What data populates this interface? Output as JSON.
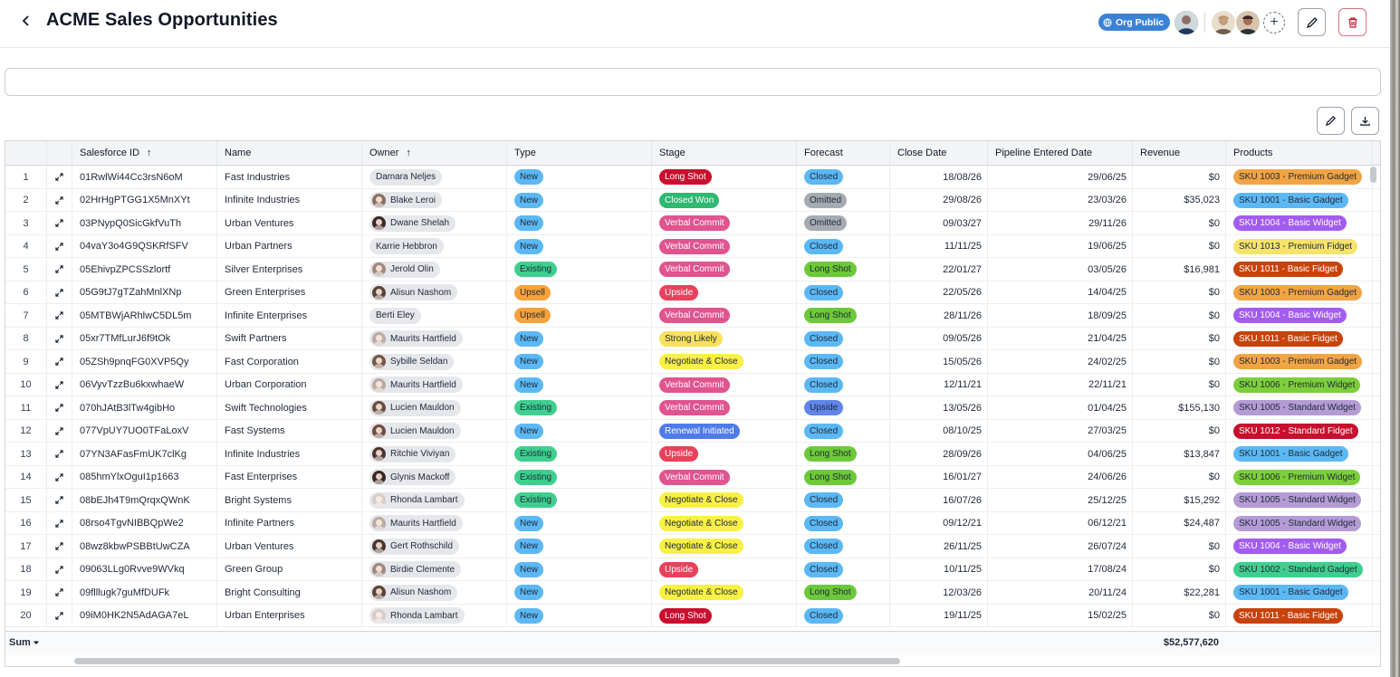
{
  "header": {
    "title": "ACME Sales Opportunities",
    "org_badge": "Org Public"
  },
  "grid": {
    "columns": [
      {
        "label": "Salesforce ID",
        "sorted": true
      },
      {
        "label": "Name",
        "sorted": false
      },
      {
        "label": "Owner",
        "sorted": true
      },
      {
        "label": "Type",
        "sorted": false
      },
      {
        "label": "Stage",
        "sorted": false
      },
      {
        "label": "Forecast",
        "sorted": false
      },
      {
        "label": "Close Date",
        "sorted": false
      },
      {
        "label": "Pipeline Entered Date",
        "sorted": false
      },
      {
        "label": "Revenue",
        "sorted": false
      },
      {
        "label": "Products",
        "sorted": false
      }
    ],
    "sort_arrow": "↑",
    "sum_label": "Sum",
    "sum_revenue": "$52,577,620",
    "rows": [
      {
        "n": "1",
        "id": "01RwlWi44Cc3rsN6oM",
        "name": "Fast Industries",
        "owner": "Damara Neljes",
        "av": "",
        "type": "New",
        "stage": "Long Shot",
        "forecast": "Closed",
        "close": "18/08/26",
        "pipe": "29/06/25",
        "rev": "$0",
        "prod": "SKU 1003 - Premium Gadget"
      },
      {
        "n": "2",
        "id": "02HrHgPTGG1X5MnXYt",
        "name": "Infinite Industries",
        "owner": "Blake Leroi",
        "av": "#8d6e63",
        "type": "New",
        "stage": "Closed Won",
        "forecast": "Omitted",
        "close": "29/08/26",
        "pipe": "23/03/26",
        "rev": "$35,023",
        "prod": "SKU 1001 - Basic Gadget"
      },
      {
        "n": "3",
        "id": "03PNypQ0SicGkfVuTh",
        "name": "Urban Ventures",
        "owner": "Dwane Shelah",
        "av": "#3e2723",
        "type": "New",
        "stage": "Verbal Commit",
        "forecast": "Omitted",
        "close": "09/03/27",
        "pipe": "29/11/26",
        "rev": "$0",
        "prod": "SKU 1004 - Basic Widget"
      },
      {
        "n": "4",
        "id": "04vaY3o4G9QSKRfSFV",
        "name": "Urban Partners",
        "owner": "Karrie Hebbron",
        "av": "",
        "type": "New",
        "stage": "Verbal Commit",
        "forecast": "Closed",
        "close": "11/11/25",
        "pipe": "19/06/25",
        "rev": "$0",
        "prod": "SKU 1013 - Premium Fidget"
      },
      {
        "n": "5",
        "id": "05EhivpZPCSSzlortf",
        "name": "Silver Enterprises",
        "owner": "Jerold Olin",
        "av": "#a1887f",
        "type": "Existing",
        "stage": "Verbal Commit",
        "forecast": "Long Shot",
        "close": "22/01/27",
        "pipe": "03/05/26",
        "rev": "$16,981",
        "prod": "SKU 1011 - Basic Fidget"
      },
      {
        "n": "6",
        "id": "05G9tJ7gTZahMnlXNp",
        "name": "Green Enterprises",
        "owner": "Alisun Nashom",
        "av": "#5d4037",
        "type": "Upsell",
        "stage": "Upside",
        "forecast": "Closed",
        "close": "22/05/26",
        "pipe": "14/04/25",
        "rev": "$0",
        "prod": "SKU 1003 - Premium Gadget"
      },
      {
        "n": "7",
        "id": "05MTBWjARhlwC5DL5m",
        "name": "Infinite Enterprises",
        "owner": "Berti Eley",
        "av": "",
        "type": "Upsell",
        "stage": "Verbal Commit",
        "forecast": "Long Shot",
        "close": "28/11/26",
        "pipe": "18/09/25",
        "rev": "$0",
        "prod": "SKU 1004 - Basic Widget"
      },
      {
        "n": "8",
        "id": "05xr7TMfLurJ6f9tOk",
        "name": "Swift Partners",
        "owner": "Maurits Hartfield",
        "av": "#bcaaa4",
        "type": "New",
        "stage": "Strong Likely",
        "forecast": "Closed",
        "close": "09/05/26",
        "pipe": "21/04/25",
        "rev": "$0",
        "prod": "SKU 1011 - Basic Fidget"
      },
      {
        "n": "9",
        "id": "05ZSh9pnqFG0XVP5Qy",
        "name": "Fast Corporation",
        "owner": "Sybille Seldan",
        "av": "#795548",
        "type": "New",
        "stage": "Negotiate & Close",
        "forecast": "Closed",
        "close": "15/05/26",
        "pipe": "24/02/25",
        "rev": "$0",
        "prod": "SKU 1003 - Premium Gadget"
      },
      {
        "n": "10",
        "id": "06VyvTzzBu6kxwhaeW",
        "name": "Urban Corporation",
        "owner": "Maurits Hartfield",
        "av": "#bcaaa4",
        "type": "New",
        "stage": "Verbal Commit",
        "forecast": "Closed",
        "close": "12/11/21",
        "pipe": "22/11/21",
        "rev": "$0",
        "prod": "SKU 1006 - Premium Widget"
      },
      {
        "n": "11",
        "id": "070hJAtB3lTw4gibHo",
        "name": "Swift Technologies",
        "owner": "Lucien Mauldon",
        "av": "#6d4c41",
        "type": "Existing",
        "stage": "Verbal Commit",
        "forecast": "Upside",
        "close": "13/05/26",
        "pipe": "01/04/25",
        "rev": "$155,130",
        "prod": "SKU 1005 - Standard Widget"
      },
      {
        "n": "12",
        "id": "077VpUY7UO0TFaLoxV",
        "name": "Fast Systems",
        "owner": "Lucien Mauldon",
        "av": "#6d4c41",
        "type": "New",
        "stage": "Renewal Initiated",
        "forecast": "Closed",
        "close": "08/10/25",
        "pipe": "27/03/25",
        "rev": "$0",
        "prod": "SKU 1012 - Standard Fidget"
      },
      {
        "n": "13",
        "id": "07YN3AFasFmUK7clKg",
        "name": "Infinite Industries",
        "owner": "Ritchie Viviyan",
        "av": "#4e342e",
        "type": "Existing",
        "stage": "Upside",
        "forecast": "Long Shot",
        "close": "28/09/26",
        "pipe": "04/06/25",
        "rev": "$13,847",
        "prod": "SKU 1001 - Basic Gadget"
      },
      {
        "n": "14",
        "id": "085hmYlxOguI1p1663",
        "name": "Fast Enterprises",
        "owner": "Glynis Mackoff",
        "av": "#3e2723",
        "type": "Existing",
        "stage": "Verbal Commit",
        "forecast": "Long Shot",
        "close": "16/01/27",
        "pipe": "24/06/26",
        "rev": "$0",
        "prod": "SKU 1006 - Premium Widget"
      },
      {
        "n": "15",
        "id": "08bEJh4T9mQrqxQWnK",
        "name": "Bright Systems",
        "owner": "Rhonda Lambart",
        "av": "#d7ccc8",
        "type": "Existing",
        "stage": "Negotiate & Close",
        "forecast": "Closed",
        "close": "16/07/26",
        "pipe": "25/12/25",
        "rev": "$15,292",
        "prod": "SKU 1005 - Standard Widget"
      },
      {
        "n": "16",
        "id": "08rso4TgvNIBBQpWe2",
        "name": "Infinite Partners",
        "owner": "Maurits Hartfield",
        "av": "#bcaaa4",
        "type": "New",
        "stage": "Negotiate & Close",
        "forecast": "Closed",
        "close": "09/12/21",
        "pipe": "06/12/21",
        "rev": "$24,487",
        "prod": "SKU 1005 - Standard Widget"
      },
      {
        "n": "17",
        "id": "08wz8kbwPSBBtUwCZA",
        "name": "Urban Ventures",
        "owner": "Gert Rothschild",
        "av": "#4e342e",
        "type": "New",
        "stage": "Negotiate & Close",
        "forecast": "Closed",
        "close": "26/11/25",
        "pipe": "26/07/24",
        "rev": "$0",
        "prod": "SKU 1004 - Basic Widget"
      },
      {
        "n": "18",
        "id": "09063LLg0Rvve9WVkq",
        "name": "Green Group",
        "owner": "Birdie Clemente",
        "av": "#a1887f",
        "type": "New",
        "stage": "Upside",
        "forecast": "Closed",
        "close": "10/11/25",
        "pipe": "17/08/24",
        "rev": "$0",
        "prod": "SKU 1002 - Standard Gadget"
      },
      {
        "n": "19",
        "id": "09flllugk7guMfDUFk",
        "name": "Bright Consulting",
        "owner": "Alisun Nashom",
        "av": "#5d4037",
        "type": "New",
        "stage": "Negotiate & Close",
        "forecast": "Long Shot",
        "close": "12/03/26",
        "pipe": "20/11/24",
        "rev": "$22,281",
        "prod": "SKU 1001 - Basic Gadget"
      },
      {
        "n": "20",
        "id": "09iM0HK2N5AdAGA7eL",
        "name": "Urban Enterprises",
        "owner": "Rhonda Lambart",
        "av": "#d7ccc8",
        "type": "New",
        "stage": "Long Shot",
        "forecast": "Closed",
        "close": "19/11/25",
        "pipe": "15/02/25",
        "rev": "$0",
        "prod": "SKU 1011 - Basic Fidget"
      }
    ]
  },
  "colors": {
    "type": {
      "New": "#5bb8f5",
      "Existing": "#3ecf8e",
      "Upsell": "#f5a23c"
    },
    "stage": {
      "Long Shot": "#c8102e",
      "Closed Won": "#2eb872",
      "Verbal Commit": "#e0548f",
      "Upside": "#e8415b",
      "Strong Likely": "#f7e15c",
      "Negotiate & Close": "#f9f046",
      "Renewal Initiated": "#4f7bea"
    },
    "stage_text": {
      "Long Shot": "#ffffff",
      "Closed Won": "#ffffff",
      "Verbal Commit": "#ffffff",
      "Upside": "#ffffff",
      "Strong Likely": "#1f2937",
      "Negotiate & Close": "#1f2937",
      "Renewal Initiated": "#ffffff"
    },
    "forecast": {
      "Closed": "#5bb8f5",
      "Omitted": "#a6abb2",
      "Long Shot": "#6cc93a",
      "Upside": "#5f86e8"
    },
    "product": {
      "SKU 1003 - Premium Gadget": "#f2a444",
      "SKU 1001 - Basic Gadget": "#5bb8f5",
      "SKU 1004 - Basic Widget": "#a35cf0",
      "SKU 1013 - Premium Fidget": "#f5e36b",
      "SKU 1011 - Basic Fidget": "#c8430b",
      "SKU 1006 - Premium Widget": "#7ccf3a",
      "SKU 1005 - Standard Widget": "#b49bd6",
      "SKU 1012 - Standard Fidget": "#c8102e",
      "SKU 1002 - Standard Gadget": "#3ecf8e"
    },
    "product_text": {
      "SKU 1003 - Premium Gadget": "#1f2937",
      "SKU 1001 - Basic Gadget": "#1f2937",
      "SKU 1004 - Basic Widget": "#ffffff",
      "SKU 1013 - Premium Fidget": "#1f2937",
      "SKU 1011 - Basic Fidget": "#ffffff",
      "SKU 1006 - Premium Widget": "#1f2937",
      "SKU 1005 - Standard Widget": "#1f2937",
      "SKU 1012 - Standard Fidget": "#ffffff",
      "SKU 1002 - Standard Gadget": "#1f2937"
    },
    "badge": "#3b82d6"
  },
  "icons": {
    "back": "chevron-left-icon",
    "edit": "pencil-icon",
    "delete": "trash-icon",
    "download": "download-icon",
    "expand": "expand-icon",
    "globe": "globe-icon"
  }
}
